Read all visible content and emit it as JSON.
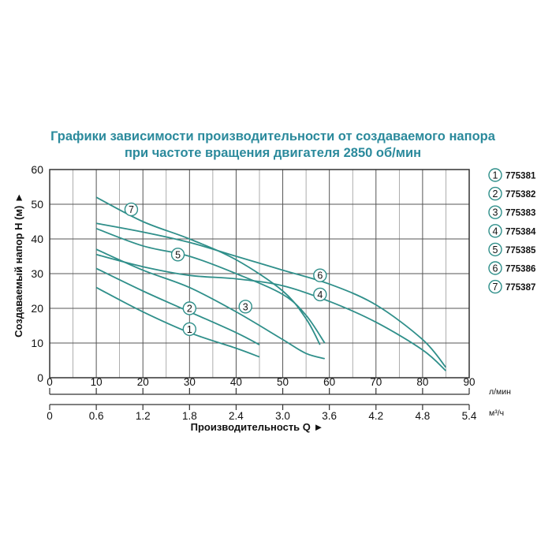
{
  "chart_data": {
    "type": "line",
    "title": [
      "Графики зависимости производительности от создаваемого напора",
      "при частоте вращения двигателя 2850 об/мин"
    ],
    "ylabel": "Создаваемый напор H (м) ►",
    "xlabel": "Производительность Q ►",
    "ylim": [
      0,
      60
    ],
    "xlim": [
      0,
      90
    ],
    "grid": true,
    "legend_position": "right",
    "y_ticks": [
      0,
      10,
      20,
      30,
      40,
      50,
      60
    ],
    "x_ticks_lpm": [
      0,
      10,
      20,
      30,
      40,
      50,
      60,
      70,
      80,
      90
    ],
    "x_unit_lpm": "л/мин",
    "x_ticks_m3h": [
      "0",
      "0.6",
      "1.2",
      "1.8",
      "2.4",
      "3.0",
      "3.6",
      "4.2",
      "4.8",
      "5.4"
    ],
    "x_unit_m3h": "м³/ч",
    "colors": {
      "curve": "#2f8f8a",
      "title": "#2b8a9c",
      "grid": "#555555"
    },
    "series": [
      {
        "name": "775381",
        "marker": "1",
        "points": [
          [
            10,
            26
          ],
          [
            20,
            19
          ],
          [
            30,
            13
          ],
          [
            40,
            8.5
          ],
          [
            45,
            6
          ]
        ],
        "label_at": [
          30,
          14
        ]
      },
      {
        "name": "775382",
        "marker": "2",
        "points": [
          [
            10,
            31.5
          ],
          [
            20,
            25
          ],
          [
            30,
            19
          ],
          [
            40,
            13
          ],
          [
            45,
            9.5
          ]
        ],
        "label_at": [
          30,
          20
        ]
      },
      {
        "name": "775383",
        "marker": "3",
        "points": [
          [
            10,
            37
          ],
          [
            20,
            31
          ],
          [
            30,
            26
          ],
          [
            40,
            19
          ],
          [
            50,
            11
          ],
          [
            55,
            7
          ],
          [
            59,
            5.5
          ]
        ],
        "label_at": [
          42,
          20.5
        ]
      },
      {
        "name": "775384",
        "marker": "4",
        "points": [
          [
            10,
            35.5
          ],
          [
            20,
            32
          ],
          [
            30,
            29.5
          ],
          [
            40,
            28.5
          ],
          [
            50,
            26.5
          ],
          [
            60,
            22
          ],
          [
            70,
            16
          ],
          [
            80,
            8
          ],
          [
            85,
            2
          ]
        ],
        "label_at": [
          58,
          24
        ]
      },
      {
        "name": "775385",
        "marker": "5",
        "points": [
          [
            10,
            43
          ],
          [
            20,
            38
          ],
          [
            30,
            35
          ],
          [
            40,
            30
          ],
          [
            50,
            24
          ],
          [
            55,
            18
          ],
          [
            59,
            10
          ]
        ],
        "label_at": [
          27.5,
          35.5
        ]
      },
      {
        "name": "775386",
        "marker": "6",
        "points": [
          [
            10,
            44.5
          ],
          [
            20,
            42
          ],
          [
            30,
            39
          ],
          [
            40,
            35
          ],
          [
            50,
            31
          ],
          [
            60,
            27
          ],
          [
            70,
            21
          ],
          [
            80,
            11
          ],
          [
            85,
            3
          ]
        ],
        "label_at": [
          58,
          29.5
        ]
      },
      {
        "name": "775387",
        "marker": "7",
        "points": [
          [
            10,
            52
          ],
          [
            20,
            45
          ],
          [
            30,
            40
          ],
          [
            40,
            34
          ],
          [
            50,
            25
          ],
          [
            55,
            17
          ],
          [
            58,
            9.5
          ]
        ],
        "label_at": [
          17.5,
          48.5
        ]
      }
    ]
  }
}
